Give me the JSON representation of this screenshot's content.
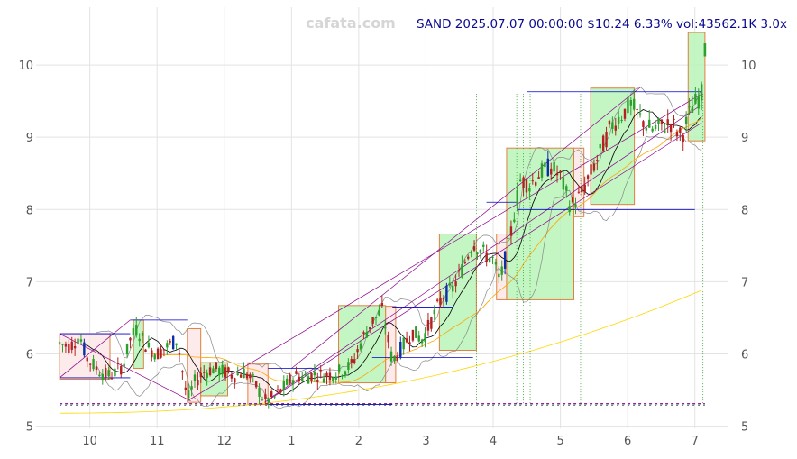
{
  "header": {
    "watermark": "cafata.com",
    "ticker_line": "SAND 2025.07.07 00:00:00 $10.24 6.33% vol:43562.1K 3.0x"
  },
  "chart_data": {
    "type": "candlestick",
    "title": "SAND 2025.07.07 00:00:00 $10.24 6.33% vol:43562.1K 3.0x",
    "symbol": "SAND",
    "date": "2025.07.07 00:00:00",
    "last_price": 10.24,
    "change_pct": 6.33,
    "volume": "43562.1K",
    "volume_ratio": "3.0x",
    "x_tick_labels": [
      "10",
      "11",
      "12",
      "1",
      "2",
      "3",
      "4",
      "5",
      "6",
      "7"
    ],
    "y_tick_labels": [
      "5",
      "6",
      "7",
      "8",
      "9",
      "10"
    ],
    "y_ticks": [
      5,
      6,
      7,
      8,
      9,
      10
    ],
    "ylim": [
      4.97,
      10.8
    ],
    "xlim_months": [
      9.55,
      19.3
    ],
    "grid": true,
    "colors": {
      "up": "#2ca02c",
      "down": "#b22222",
      "big_up": "#0a2fa8",
      "box_up": "#b8f5b8",
      "box_down": "#fde6e6",
      "box_edge": "#e08040",
      "ma_short": "#000000",
      "ma_mid": "#ffa500",
      "ma_long": "#ffd700",
      "bands": "#888888",
      "trend": "#8b008b",
      "level": "#0000cc"
    },
    "price_series_key": [
      [
        9.55,
        6.15
      ],
      [
        9.7,
        6.1
      ],
      [
        9.85,
        6.25
      ],
      [
        9.95,
        5.95
      ],
      [
        10.1,
        5.8
      ],
      [
        10.25,
        5.7
      ],
      [
        10.35,
        5.72
      ],
      [
        10.5,
        5.85
      ],
      [
        10.6,
        6.2
      ],
      [
        10.7,
        6.35
      ],
      [
        10.85,
        6.1
      ],
      [
        11.0,
        6.0
      ],
      [
        11.15,
        6.1
      ],
      [
        11.3,
        6.2
      ],
      [
        11.45,
        5.35
      ],
      [
        11.55,
        5.6
      ],
      [
        11.7,
        5.75
      ],
      [
        11.85,
        5.8
      ],
      [
        12.0,
        5.75
      ],
      [
        12.15,
        5.7
      ],
      [
        12.3,
        5.75
      ],
      [
        12.45,
        5.6
      ],
      [
        12.6,
        5.35
      ],
      [
        12.75,
        5.4
      ],
      [
        12.9,
        5.55
      ],
      [
        13.05,
        5.7
      ],
      [
        13.2,
        5.68
      ],
      [
        13.35,
        5.72
      ],
      [
        13.5,
        5.7
      ],
      [
        13.7,
        5.75
      ],
      [
        13.9,
        5.85
      ],
      [
        14.05,
        6.2
      ],
      [
        14.2,
        6.45
      ],
      [
        14.35,
        6.6
      ],
      [
        14.5,
        5.9
      ],
      [
        14.65,
        6.1
      ],
      [
        14.8,
        6.3
      ],
      [
        14.95,
        6.2
      ],
      [
        15.1,
        6.5
      ],
      [
        15.25,
        6.8
      ],
      [
        15.4,
        6.9
      ],
      [
        15.55,
        7.2
      ],
      [
        15.7,
        7.55
      ],
      [
        15.85,
        7.4
      ],
      [
        16.0,
        7.3
      ],
      [
        16.1,
        7.0
      ],
      [
        16.25,
        7.6
      ],
      [
        16.4,
        8.4
      ],
      [
        16.55,
        8.35
      ],
      [
        16.7,
        8.5
      ],
      [
        16.85,
        8.6
      ],
      [
        17.0,
        8.45
      ],
      [
        17.15,
        8.05
      ],
      [
        17.3,
        8.2
      ],
      [
        17.45,
        8.5
      ],
      [
        17.6,
        8.8
      ],
      [
        17.75,
        9.15
      ],
      [
        17.9,
        9.3
      ],
      [
        18.05,
        9.45
      ],
      [
        18.2,
        9.25
      ],
      [
        18.35,
        9.1
      ],
      [
        18.5,
        9.15
      ],
      [
        18.65,
        9.2
      ],
      [
        18.8,
        9.0
      ],
      [
        18.95,
        9.4
      ],
      [
        19.1,
        9.6
      ],
      [
        19.15,
        10.24
      ]
    ],
    "boxes": [
      {
        "x0": 9.55,
        "x1": 10.3,
        "low": 5.65,
        "high": 6.28,
        "kind": "down"
      },
      {
        "x0": 10.65,
        "x1": 10.8,
        "low": 5.8,
        "high": 6.47,
        "kind": "up"
      },
      {
        "x0": 11.45,
        "x1": 11.65,
        "low": 5.33,
        "high": 6.35,
        "kind": "down"
      },
      {
        "x0": 11.65,
        "x1": 12.05,
        "low": 5.42,
        "high": 5.88,
        "kind": "up"
      },
      {
        "x0": 12.35,
        "x1": 12.65,
        "low": 5.3,
        "high": 5.86,
        "kind": "down"
      },
      {
        "x0": 13.7,
        "x1": 14.4,
        "low": 5.6,
        "high": 6.67,
        "kind": "up"
      },
      {
        "x0": 14.4,
        "x1": 14.55,
        "low": 5.6,
        "high": 6.66,
        "kind": "down"
      },
      {
        "x0": 15.2,
        "x1": 15.75,
        "low": 6.05,
        "high": 7.66,
        "kind": "up"
      },
      {
        "x0": 16.05,
        "x1": 16.2,
        "low": 6.75,
        "high": 7.66,
        "kind": "down"
      },
      {
        "x0": 16.2,
        "x1": 17.2,
        "low": 6.75,
        "high": 8.85,
        "kind": "up"
      },
      {
        "x0": 17.2,
        "x1": 17.35,
        "low": 7.9,
        "high": 8.85,
        "kind": "down"
      },
      {
        "x0": 17.45,
        "x1": 18.1,
        "low": 8.07,
        "high": 9.68,
        "kind": "up"
      },
      {
        "x0": 18.9,
        "x1": 19.15,
        "low": 8.95,
        "high": 10.45,
        "kind": "up"
      }
    ],
    "levels": [
      {
        "x0": 9.55,
        "x1": 10.6,
        "y": 6.28
      },
      {
        "x0": 10.6,
        "x1": 11.45,
        "y": 6.47
      },
      {
        "x0": 9.55,
        "x1": 10.6,
        "y": 5.67
      },
      {
        "x0": 10.65,
        "x1": 11.4,
        "y": 5.75
      },
      {
        "x0": 12.65,
        "x1": 13.4,
        "y": 5.8
      },
      {
        "x0": 12.65,
        "x1": 14.5,
        "y": 5.3
      },
      {
        "x0": 14.5,
        "x1": 15.4,
        "y": 6.65
      },
      {
        "x0": 14.2,
        "x1": 15.7,
        "y": 5.95
      },
      {
        "x0": 15.9,
        "x1": 16.35,
        "y": 8.1
      },
      {
        "x0": 16.35,
        "x1": 19.0,
        "y": 8.0
      },
      {
        "x0": 16.5,
        "x1": 19.1,
        "y": 9.63
      }
    ]
  }
}
